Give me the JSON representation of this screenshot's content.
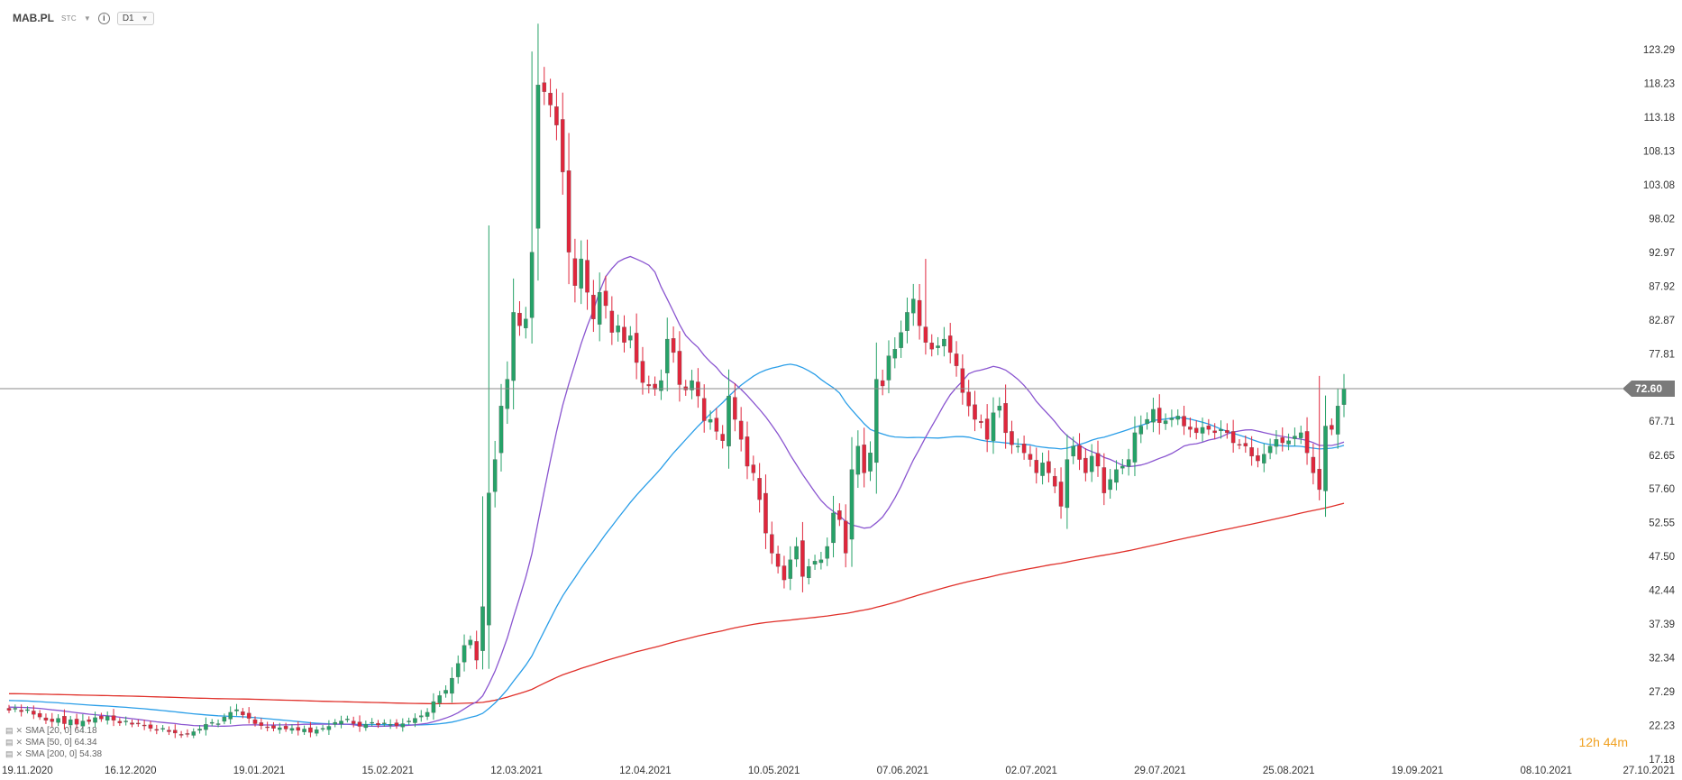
{
  "toolbar": {
    "symbol": "MAB.PL",
    "sub": "STC",
    "info_icon": "info-icon",
    "timeframe": "D1"
  },
  "timer": {
    "hours": "12",
    "h": "h",
    "minutes": "44",
    "m": "m"
  },
  "legend": [
    {
      "text": "SMA [20, 0] 64.18"
    },
    {
      "text": "SMA [50, 0] 64.34"
    },
    {
      "text": "SMA [200, 0] 54.38"
    }
  ],
  "chart_data": {
    "type": "candlestick",
    "y_ticks": [
      "123.29",
      "118.23",
      "113.18",
      "108.13",
      "103.08",
      "98.02",
      "92.97",
      "87.92",
      "82.87",
      "77.81",
      "72.60",
      "67.71",
      "62.65",
      "57.60",
      "52.55",
      "47.50",
      "42.44",
      "37.39",
      "32.34",
      "27.29",
      "22.23",
      "17.18"
    ],
    "ylim": [
      17.18,
      123.29
    ],
    "x_ticks": [
      "19.11.2020",
      "16.12.2020",
      "19.01.2021",
      "15.02.2021",
      "12.03.2021",
      "12.04.2021",
      "10.05.2021",
      "07.06.2021",
      "02.07.2021",
      "29.07.2021",
      "25.08.2021",
      "19.09.2021",
      "08.10.2021",
      "27.10.2021"
    ],
    "current_price": "72.60",
    "colors": {
      "up": "#26a268",
      "down": "#e0263c",
      "sma20": "#8a55d0",
      "sma50": "#2a9ee8",
      "sma200": "#e0302a",
      "price_line": "#888888"
    },
    "closes": [
      24.5,
      24.8,
      24.3,
      24.6,
      23.9,
      23.5,
      23.0,
      22.8,
      23.3,
      22.5,
      23.1,
      22.4,
      22.9,
      22.8,
      23.4,
      23.2,
      23.6,
      23.0,
      22.6,
      22.9,
      22.4,
      22.5,
      22.2,
      21.8,
      21.5,
      21.8,
      21.3,
      21.1,
      20.8,
      21.0,
      21.3,
      21.7,
      22.4,
      22.7,
      22.5,
      23.5,
      24.2,
      24.6,
      23.8,
      23.3,
      22.5,
      22.2,
      22.0,
      21.8,
      21.9,
      21.7,
      21.8,
      21.5,
      21.7,
      21.2,
      21.6,
      21.8,
      22.1,
      22.7,
      22.9,
      23.2,
      22.5,
      22.1,
      22.4,
      22.7,
      22.3,
      22.6,
      22.4,
      22.2,
      22.5,
      22.9,
      23.3,
      23.7,
      24.2,
      25.8,
      26.7,
      27.5,
      29.3,
      31.5,
      34.2,
      35.0,
      32.0,
      40.0,
      57.0,
      62.0,
      70.0,
      74.0,
      84.0,
      82.0,
      83.0,
      93.0,
      118.0,
      117.0,
      115.0,
      112.0,
      105.0,
      93.0,
      88.0,
      92.0,
      87.0,
      83.0,
      87.0,
      85.0,
      81.0,
      82.0,
      79.5,
      80.5,
      76.5,
      73.5,
      73.0,
      72.5,
      73.8,
      80.0,
      78.0,
      73.2,
      72.4,
      73.8,
      71.5,
      67.8,
      68.0,
      66.2,
      64.8,
      71.5,
      68.0,
      65.0,
      61.0,
      60.0,
      56.0,
      51.0,
      48.0,
      46.0,
      44.0,
      47.0,
      49.0,
      44.5,
      46.0,
      46.8,
      47.0,
      49.0,
      54.0,
      53.0,
      48.0,
      60.5,
      64.0,
      60.0,
      63.0,
      74.0,
      73.0,
      77.5,
      78.5,
      81.0,
      84.0,
      86.0,
      82.0,
      79.5,
      78.5,
      79.0,
      80.0,
      78.0,
      76.0,
      72.0,
      70.0,
      68.0,
      67.5,
      65.0,
      69.0,
      70.0,
      66.0,
      64.2,
      64.0,
      63.0,
      62.0,
      60.0,
      61.5,
      60.0,
      58.0,
      55.0,
      62.0,
      64.0,
      62.0,
      60.0,
      62.5,
      61.0,
      57.0,
      59.0,
      60.5,
      61.0,
      62.0,
      66.0,
      67.0,
      68.0,
      69.5,
      67.5,
      67.8,
      68.2,
      68.5,
      67.0,
      66.5,
      66.0,
      66.8,
      66.5,
      66.0,
      66.5,
      66.0,
      64.5,
      64.2,
      64.0,
      62.5,
      61.8,
      62.8,
      64.0,
      65.0,
      64.5,
      64.8,
      65.5,
      66.0,
      63.0,
      60.0,
      57.5,
      67.0,
      66.5,
      70.0,
      72.6
    ]
  }
}
